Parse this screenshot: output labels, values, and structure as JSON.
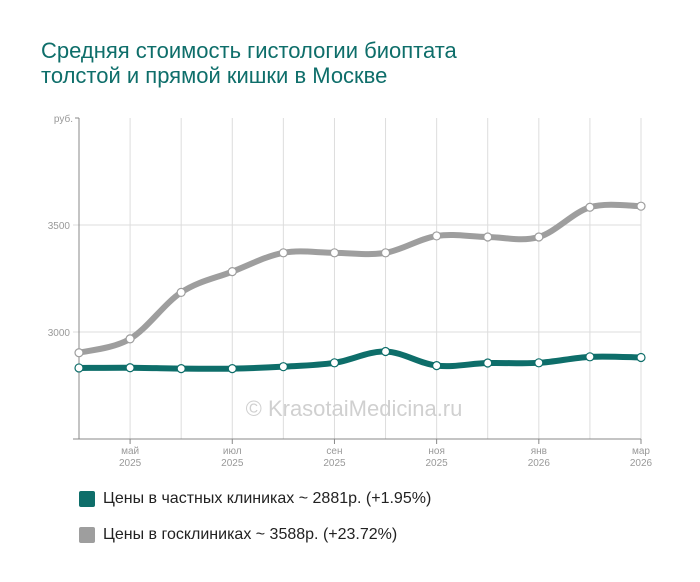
{
  "title_lines": [
    "Средняя стоимость гистологии биоптата",
    "толстой и прямой кишки в Москве"
  ],
  "watermark": "© KrasotaiMedicina.ru",
  "colors": {
    "title": "#0e6e6a",
    "private": "#0e6e6a",
    "public": "#9e9e9e",
    "grid": "#dddddd",
    "axis": "#888888",
    "tick_text": "#999999"
  },
  "legend": [
    {
      "label": "Цены в частных клиниках ~ 2881р. (+1.95%)",
      "color": "#0e6e6a"
    },
    {
      "label": "Цены в госклиниках ~ 3588р. (+23.72%)",
      "color": "#9e9e9e"
    }
  ],
  "chart_data": {
    "type": "line",
    "title": "Средняя стоимость гистологии биоптата толстой и прямой кишки в Москве",
    "ylabel": "руб.",
    "xlabel": "",
    "ylim": [
      2500,
      4000
    ],
    "yticks": [
      3000,
      3500
    ],
    "grid": true,
    "legend_position": "bottom",
    "x": [
      "апр 2025",
      "май 2025",
      "июн 2025",
      "июл 2025",
      "авг 2025",
      "сен 2025",
      "окт 2025",
      "ноя 2025",
      "дек 2025",
      "янв 2026",
      "фев 2026",
      "мар 2026"
    ],
    "xtick_labels": [
      {
        "index": 1,
        "month": "май",
        "year": "2025"
      },
      {
        "index": 3,
        "month": "июл",
        "year": "2025"
      },
      {
        "index": 5,
        "month": "сен",
        "year": "2025"
      },
      {
        "index": 7,
        "month": "ноя",
        "year": "2025"
      },
      {
        "index": 9,
        "month": "янв",
        "year": "2026"
      },
      {
        "index": 11,
        "month": "мар",
        "year": "2026"
      }
    ],
    "series": [
      {
        "name": "Цены в госклиниках",
        "color": "#9e9e9e",
        "values": [
          2903,
          2968,
          3185,
          3282,
          3370,
          3370,
          3370,
          3449,
          3444,
          3444,
          3583,
          3588
        ]
      },
      {
        "name": "Цены в частных клиниках",
        "color": "#0e6e6a",
        "values": [
          2832,
          2833,
          2829,
          2829,
          2838,
          2856,
          2909,
          2843,
          2855,
          2856,
          2884,
          2881
        ]
      }
    ]
  }
}
